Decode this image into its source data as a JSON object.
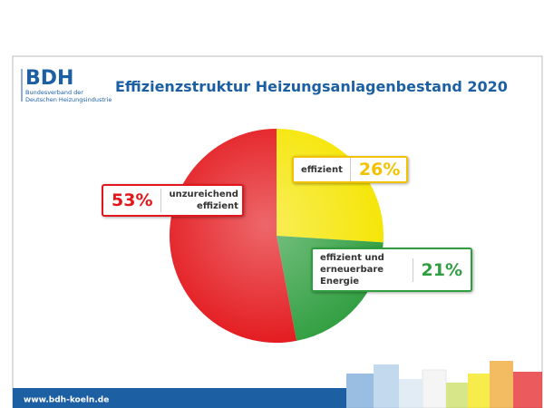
{
  "header": {
    "logo": "BDH",
    "org_line1": "Bundesverband der",
    "org_line2": "Deutschen Heizungsindustrie"
  },
  "chart_data": {
    "type": "pie",
    "title": "Effizienzstruktur Heizungsanlagenbestand 2020",
    "categories": [
      "effizient",
      "effizient und erneuerbare Energie",
      "unzureichend effizient"
    ],
    "values": [
      26,
      21,
      53
    ],
    "value_labels": [
      "26%",
      "21%",
      "53%"
    ],
    "colors": [
      "#f5e500",
      "#2f9e3f",
      "#e3161b"
    ],
    "label_colors": [
      "#f2c200",
      "#2f9e3f",
      "#e3161b"
    ]
  },
  "footer": {
    "url": "www.bdh-koeln.de"
  }
}
